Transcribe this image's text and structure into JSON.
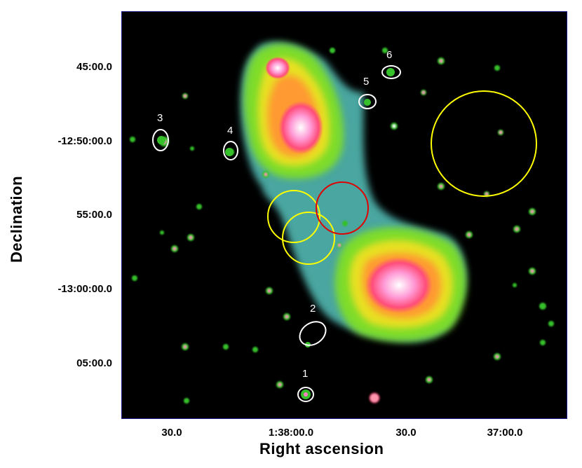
{
  "figure": {
    "y_ticks": [
      "45:00.0",
      "-12:50:00.0",
      "55:00.0",
      "-13:00:00.0",
      "05:00.0"
    ],
    "x_ticks": [
      "30.0",
      "1:38:00.0",
      "30.0",
      "37:00.0"
    ],
    "y_label": "Declination",
    "x_label": "Right ascension",
    "source_labels": [
      "1",
      "2",
      "3",
      "4",
      "5",
      "6"
    ]
  },
  "colors": {
    "background": "#000000",
    "frame": "#1a1a8c",
    "region_white": "#ffffff",
    "region_yellow": "#ffff00",
    "region_red": "#e00000"
  }
}
